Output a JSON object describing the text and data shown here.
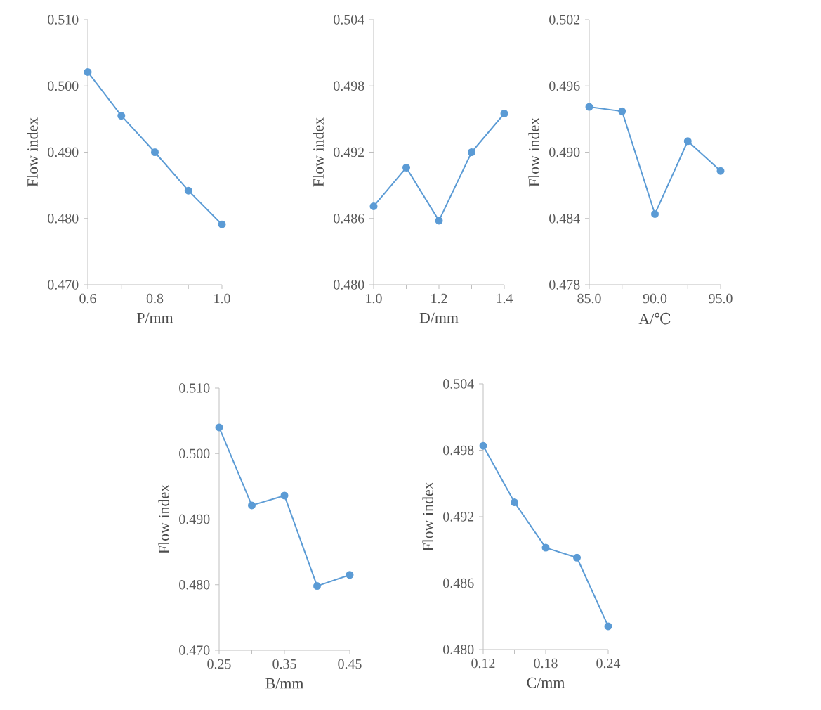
{
  "chart_data": [
    {
      "type": "line",
      "xlabel": "P/mm",
      "ylabel": "Flow index",
      "marker": "circle",
      "color": "#5b9bd5",
      "x": [
        0.6,
        0.7,
        0.8,
        0.9,
        1.0
      ],
      "values": [
        0.5021,
        0.4955,
        0.49,
        0.4842,
        0.4791
      ],
      "xlim": [
        0.6,
        1.0
      ],
      "ylim": [
        0.47,
        0.51
      ],
      "xticks": [
        {
          "value": 0.6,
          "label": "0.6"
        },
        {
          "value": 0.7,
          "label": null
        },
        {
          "value": 0.8,
          "label": "0.8"
        },
        {
          "value": 0.9,
          "label": null
        },
        {
          "value": 1.0,
          "label": "1.0"
        }
      ],
      "yticks": [
        {
          "value": 0.47,
          "label": "0.470"
        },
        {
          "value": 0.48,
          "label": "0.480"
        },
        {
          "value": 0.49,
          "label": "0.490"
        },
        {
          "value": 0.5,
          "label": "0.500"
        },
        {
          "value": 0.51,
          "label": "0.510"
        }
      ]
    },
    {
      "type": "line",
      "xlabel": "D/mm",
      "ylabel": "Flow index",
      "marker": "circle",
      "color": "#5b9bd5",
      "x": [
        1.0,
        1.1,
        1.2,
        1.3,
        1.4
      ],
      "values": [
        0.4871,
        0.4906,
        0.4858,
        0.492,
        0.4955
      ],
      "xlim": [
        1.0,
        1.4
      ],
      "ylim": [
        0.48,
        0.504
      ],
      "xticks": [
        {
          "value": 1.0,
          "label": "1.0"
        },
        {
          "value": 1.1,
          "label": null
        },
        {
          "value": 1.2,
          "label": "1.2"
        },
        {
          "value": 1.3,
          "label": null
        },
        {
          "value": 1.4,
          "label": "1.4"
        }
      ],
      "yticks": [
        {
          "value": 0.48,
          "label": "0.480"
        },
        {
          "value": 0.486,
          "label": "0.486"
        },
        {
          "value": 0.492,
          "label": "0.492"
        },
        {
          "value": 0.498,
          "label": "0.498"
        },
        {
          "value": 0.504,
          "label": "0.504"
        }
      ]
    },
    {
      "type": "line",
      "xlabel": "A/℃",
      "ylabel": "Flow index",
      "marker": "circle",
      "color": "#5b9bd5",
      "x": [
        85.0,
        87.5,
        90.0,
        92.5,
        95.0
      ],
      "values": [
        0.4941,
        0.4937,
        0.4844,
        0.491,
        0.4883
      ],
      "xlim": [
        85.0,
        95.0
      ],
      "ylim": [
        0.478,
        0.502
      ],
      "xticks": [
        {
          "value": 85.0,
          "label": "85.0"
        },
        {
          "value": 87.5,
          "label": null
        },
        {
          "value": 90.0,
          "label": "90.0"
        },
        {
          "value": 92.5,
          "label": null
        },
        {
          "value": 95.0,
          "label": "95.0"
        }
      ],
      "yticks": [
        {
          "value": 0.478,
          "label": "0.478"
        },
        {
          "value": 0.484,
          "label": "0.484"
        },
        {
          "value": 0.49,
          "label": "0.490"
        },
        {
          "value": 0.496,
          "label": "0.496"
        },
        {
          "value": 0.502,
          "label": "0.502"
        }
      ]
    },
    {
      "type": "line",
      "xlabel": "B/mm",
      "ylabel": "Flow index",
      "marker": "circle",
      "color": "#5b9bd5",
      "x": [
        0.25,
        0.3,
        0.35,
        0.4,
        0.45
      ],
      "values": [
        0.504,
        0.4921,
        0.4936,
        0.4798,
        0.4815
      ],
      "xlim": [
        0.25,
        0.45
      ],
      "ylim": [
        0.47,
        0.51
      ],
      "xticks": [
        {
          "value": 0.25,
          "label": "0.25"
        },
        {
          "value": 0.3,
          "label": null
        },
        {
          "value": 0.35,
          "label": "0.35"
        },
        {
          "value": 0.4,
          "label": null
        },
        {
          "value": 0.45,
          "label": "0.45"
        }
      ],
      "yticks": [
        {
          "value": 0.47,
          "label": "0.470"
        },
        {
          "value": 0.48,
          "label": "0.480"
        },
        {
          "value": 0.49,
          "label": "0.490"
        },
        {
          "value": 0.5,
          "label": "0.500"
        },
        {
          "value": 0.51,
          "label": "0.510"
        }
      ]
    },
    {
      "type": "line",
      "xlabel": "C/mm",
      "ylabel": "Flow index",
      "marker": "circle",
      "color": "#5b9bd5",
      "x": [
        0.12,
        0.15,
        0.18,
        0.21,
        0.24
      ],
      "values": [
        0.4984,
        0.4933,
        0.4892,
        0.4883,
        0.4821
      ],
      "xlim": [
        0.12,
        0.24
      ],
      "ylim": [
        0.48,
        0.504
      ],
      "xticks": [
        {
          "value": 0.12,
          "label": "0.12"
        },
        {
          "value": 0.15,
          "label": null
        },
        {
          "value": 0.18,
          "label": "0.18"
        },
        {
          "value": 0.21,
          "label": null
        },
        {
          "value": 0.24,
          "label": "0.24"
        }
      ],
      "yticks": [
        {
          "value": 0.48,
          "label": "0.480"
        },
        {
          "value": 0.486,
          "label": "0.486"
        },
        {
          "value": 0.492,
          "label": "0.492"
        },
        {
          "value": 0.498,
          "label": "0.498"
        },
        {
          "value": 0.504,
          "label": "0.504"
        }
      ]
    }
  ]
}
